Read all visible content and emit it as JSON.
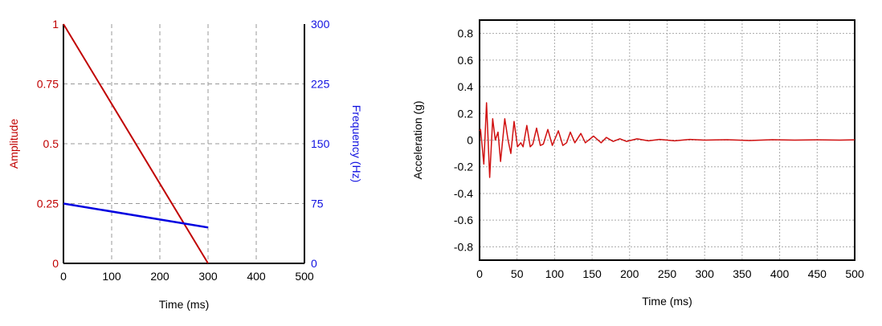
{
  "chart_data": [
    {
      "type": "line",
      "xlabel": "Time (ms)",
      "ylabel": "Amplitude",
      "y2label": "Frequency (Hz)",
      "xlim": [
        0,
        500
      ],
      "ylim": [
        0,
        1
      ],
      "y2lim": [
        0,
        300
      ],
      "xticks": [
        "0",
        "100",
        "200",
        "300",
        "400",
        "500"
      ],
      "yticks": [
        "0",
        "0.25",
        "0.5",
        "0.75",
        "1"
      ],
      "y2ticks": [
        "0",
        "75",
        "150",
        "225",
        "300"
      ],
      "grid": true,
      "colors": {
        "amplitude": "#c00000",
        "frequency": "#0000e0",
        "y2axis": "#1010e0"
      },
      "series": [
        {
          "axis": "left",
          "x": [
            0,
            300
          ],
          "y": [
            1,
            0
          ]
        },
        {
          "axis": "right",
          "x": [
            0,
            300
          ],
          "y": [
            75,
            45
          ]
        }
      ]
    },
    {
      "type": "line",
      "xlabel": "Time (ms)",
      "ylabel": "Acceleration (g)",
      "xlim": [
        0,
        500
      ],
      "ylim": [
        -0.9,
        0.9
      ],
      "xticks": [
        "0",
        "50",
        "100",
        "150",
        "200",
        "250",
        "300",
        "350",
        "400",
        "450",
        "500"
      ],
      "yticks": [
        "0.8",
        "0.6",
        "0.4",
        "0.2",
        "0",
        "-0.2",
        "-0.4",
        "-0.6",
        "-0.8"
      ],
      "grid": true,
      "colors": {
        "signal": "#d01010"
      },
      "series": [
        {
          "x": [
            0,
            1.3,
            5.7,
            9.3,
            13.5,
            17.5,
            21,
            24.6,
            28,
            33.6,
            38,
            41.7,
            46,
            50.6,
            55,
            58,
            63,
            67.5,
            71,
            76,
            81,
            85,
            91,
            97,
            105,
            111,
            116,
            121,
            127,
            135,
            141,
            152,
            162,
            169,
            178,
            187,
            196,
            210,
            225,
            240,
            260,
            280,
            300,
            330,
            360,
            390,
            420,
            450,
            480,
            500
          ],
          "y": [
            0.07,
            0.08,
            -0.18,
            0.28,
            -0.28,
            0.16,
            0,
            0.06,
            -0.16,
            0.16,
            0,
            -0.1,
            0.14,
            -0.05,
            -0.02,
            -0.05,
            0.11,
            -0.05,
            -0.03,
            0.09,
            -0.04,
            -0.03,
            0.08,
            -0.04,
            0.07,
            -0.04,
            -0.02,
            0.06,
            -0.02,
            0.05,
            -0.02,
            0.03,
            -0.02,
            0.02,
            -0.01,
            0.01,
            -0.01,
            0.01,
            -0.005,
            0.005,
            -0.005,
            0.005,
            0,
            0.003,
            -0.003,
            0.003,
            0,
            0.002,
            0,
            0.002
          ]
        }
      ]
    }
  ]
}
